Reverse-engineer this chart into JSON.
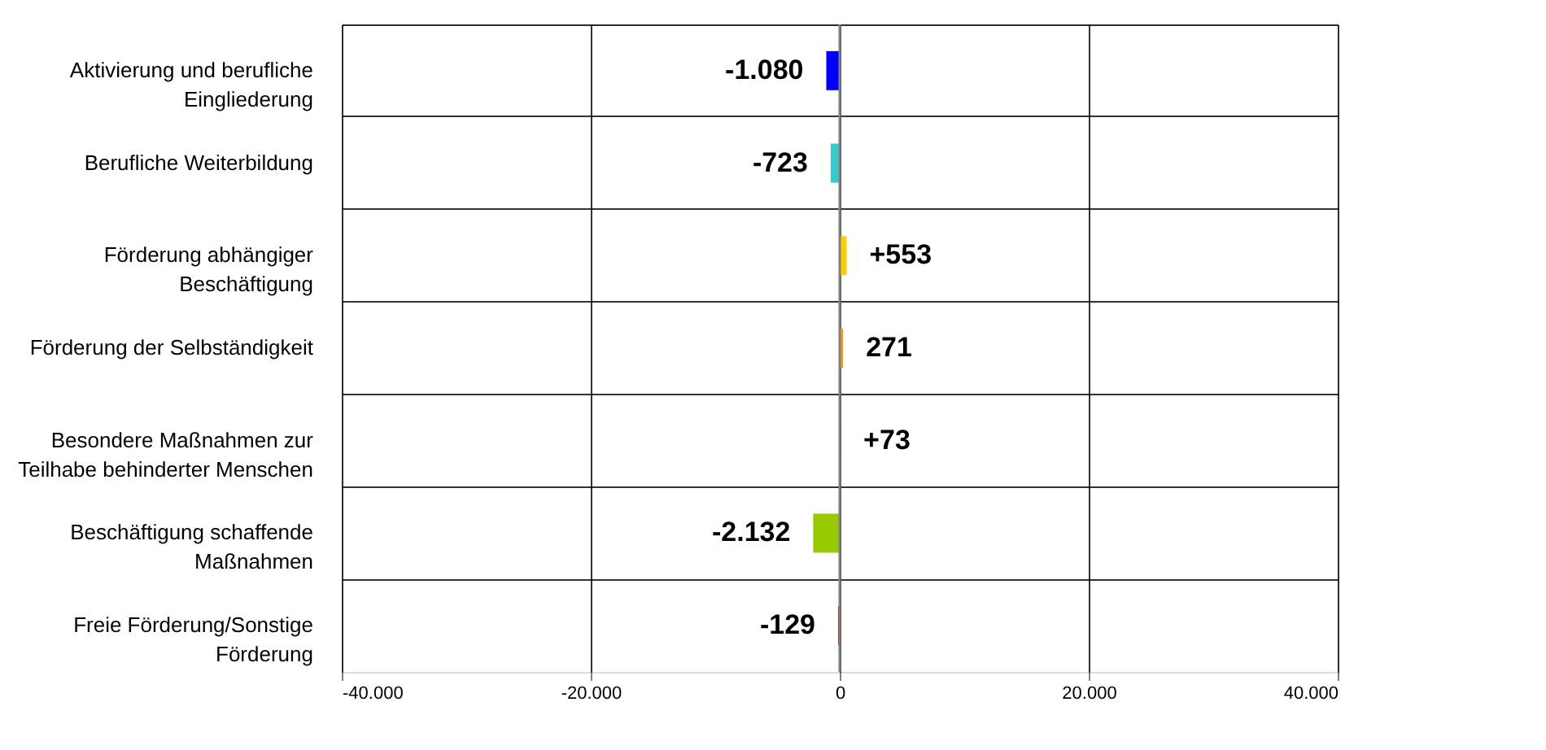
{
  "chart_data": {
    "type": "bar",
    "orientation": "horizontal",
    "categories": [
      "Aktivierung und berufliche Eingliederung",
      "Berufliche Weiterbildung",
      "Förderung abhängiger Beschäftigung",
      "Förderung der Selbständigkeit",
      "Besondere Maßnahmen zur Teilhabe behinderter Menschen",
      "Beschäftigung schaffende Maßnahmen",
      "Freie Förderung/Sonstige Förderung"
    ],
    "values": [
      -1080,
      -723,
      553,
      271,
      73,
      -2132,
      -129
    ],
    "colors": [
      "#0000ff",
      "#33cccc",
      "#ffcc00",
      "#ff9900",
      "#000080",
      "#99cc00",
      "#990000"
    ],
    "value_labels": [
      "-1.080",
      "-723",
      "+553",
      "271",
      "+73",
      "-2.132",
      "-129"
    ],
    "xlim": [
      -40000,
      40000
    ],
    "xticks": [
      {
        "value": -40000,
        "label": "-40.000"
      },
      {
        "value": -20000,
        "label": "-20.000"
      },
      0,
      {
        "value": 20000,
        "label": "20.000"
      },
      {
        "value": 40000,
        "label": "40.000"
      }
    ],
    "grid": true
  }
}
